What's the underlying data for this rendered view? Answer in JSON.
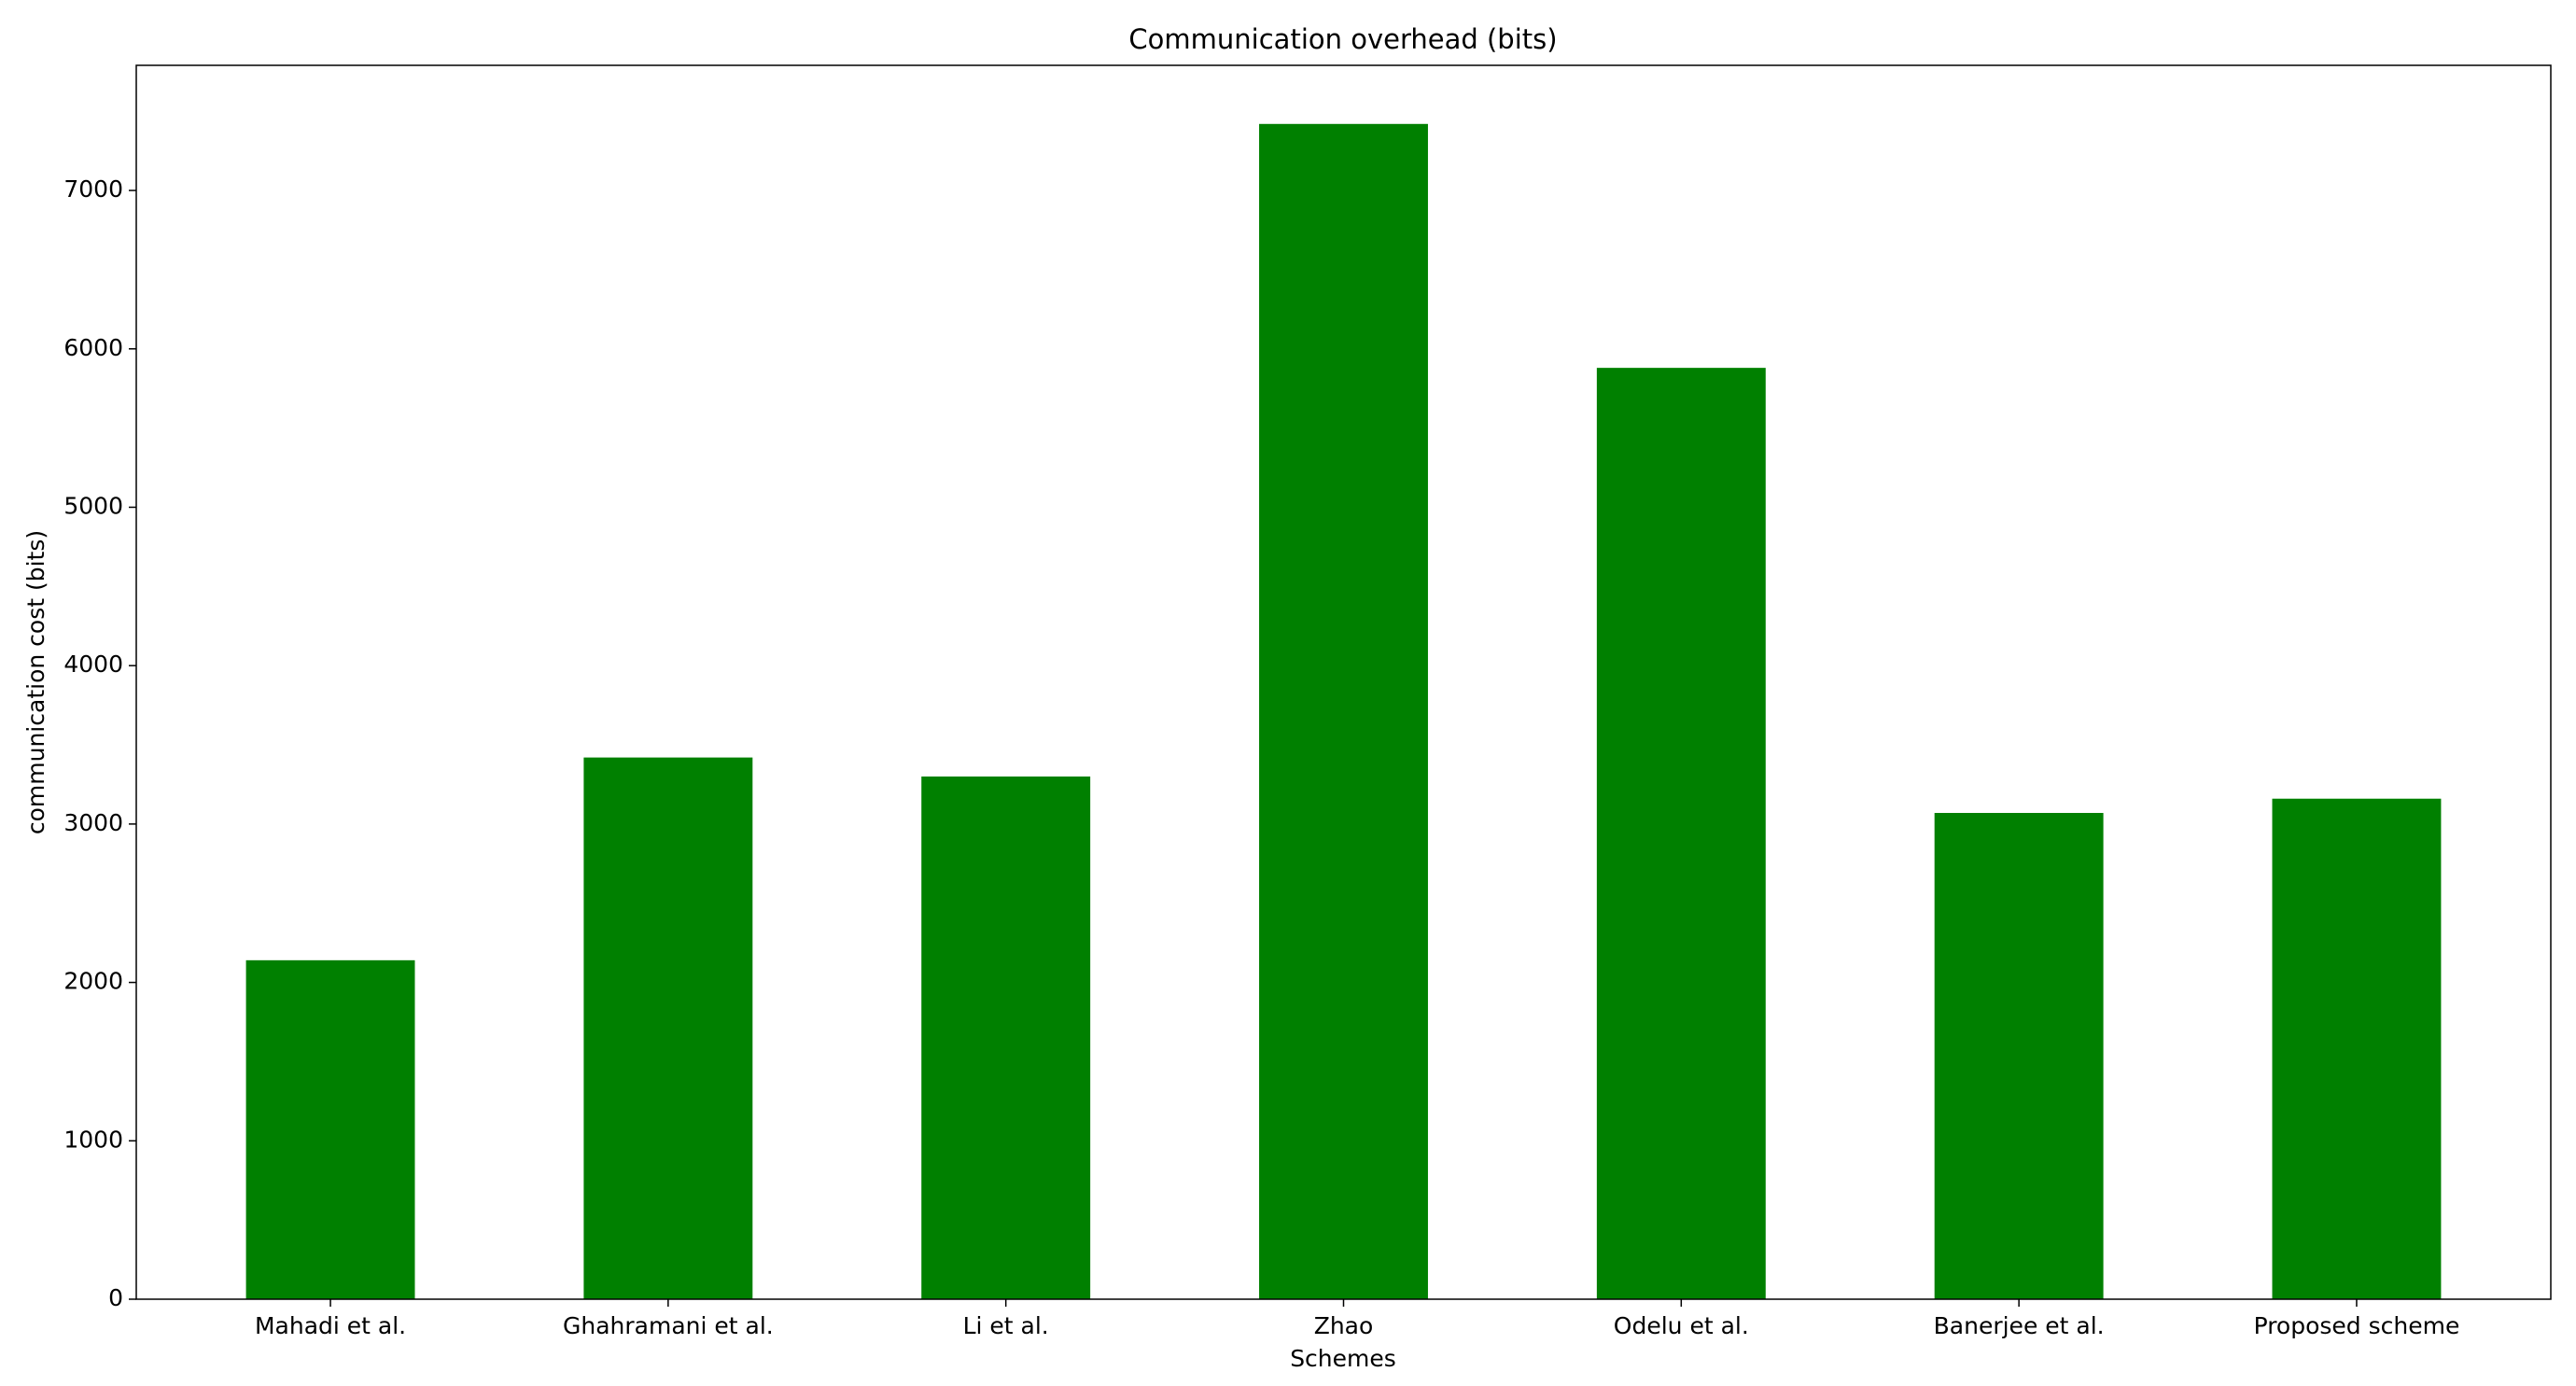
{
  "chart_data": {
    "type": "bar",
    "title": "Communication overhead (bits)",
    "x_label": "Schemes",
    "y_label": "communication cost (bits)",
    "categories": [
      "Mahadi et al.",
      "Ghahramani et al.",
      "Li et al.",
      "Zhao",
      "Odelu et al.",
      "Banerjee et al.",
      "Proposed scheme"
    ],
    "values": [
      2140,
      3420,
      3300,
      7420,
      5880,
      3070,
      3160
    ],
    "color": "#008000",
    "ylim": [
      0,
      7790
    ],
    "yticks": [
      0,
      1000,
      2000,
      3000,
      4000,
      5000,
      6000,
      7000
    ],
    "grid": false
  }
}
